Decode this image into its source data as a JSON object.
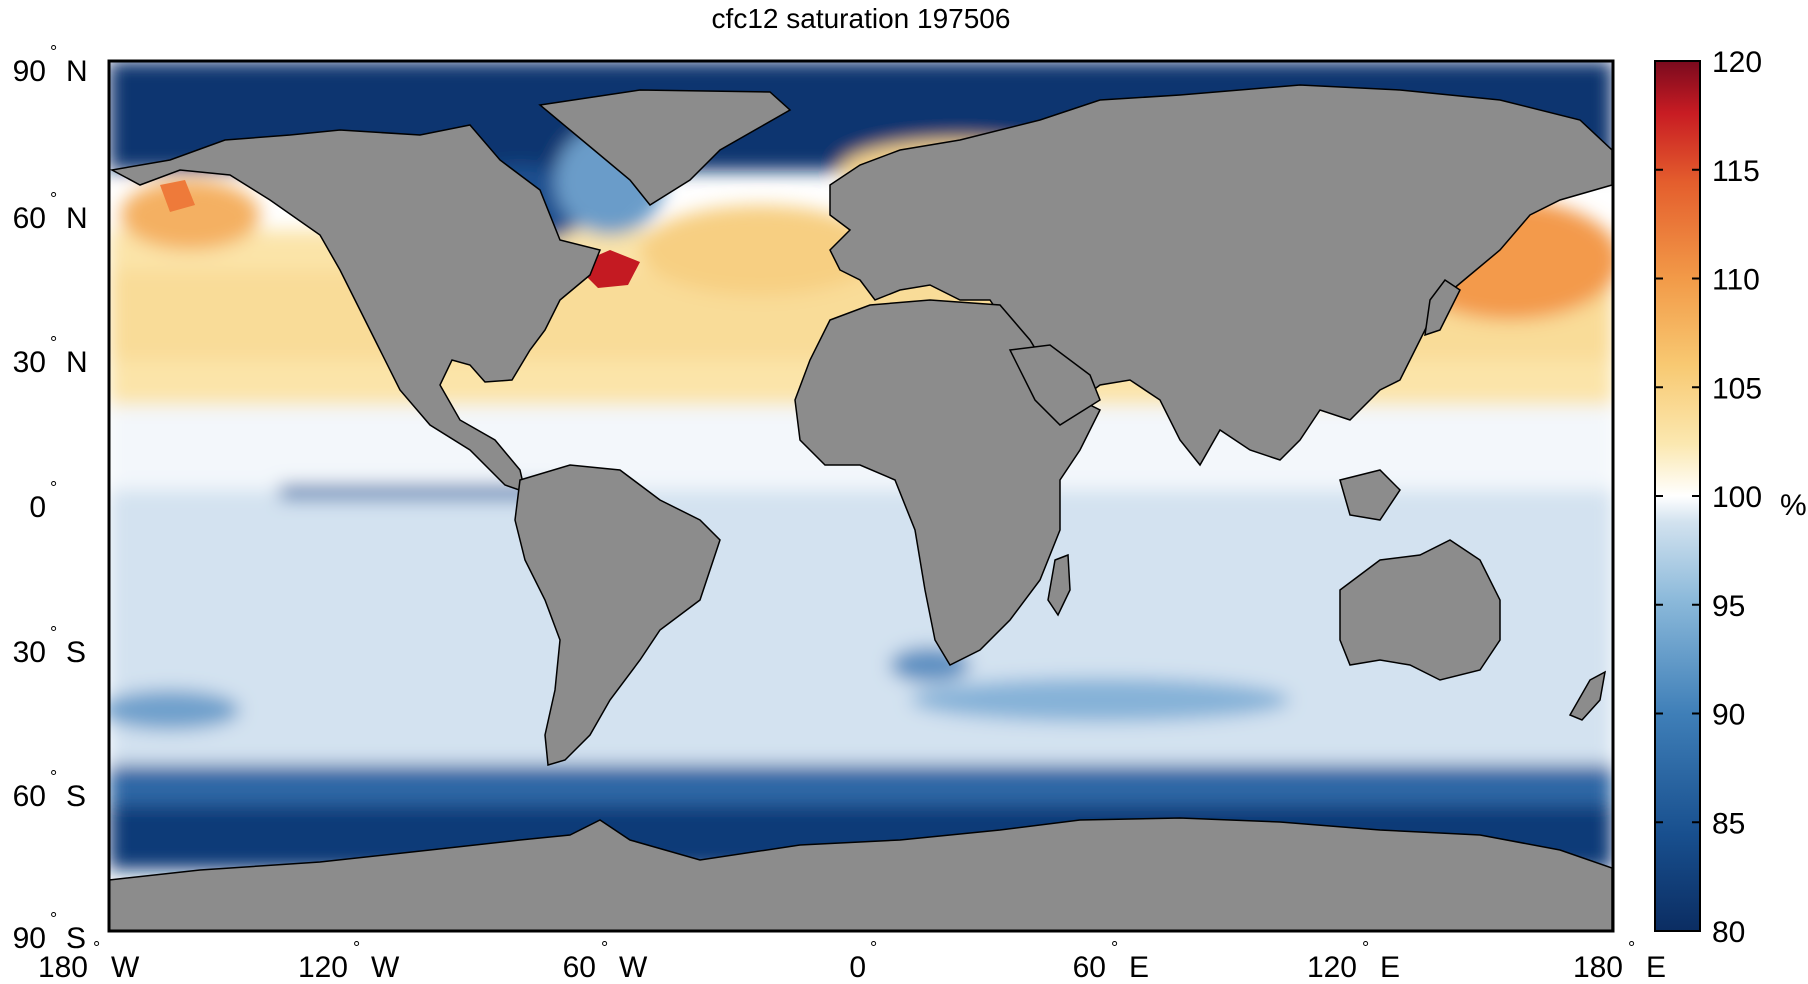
{
  "title": "cfc12 saturation 197506",
  "map": {
    "projection": "equirectangular",
    "lon_range": [
      -180,
      180
    ],
    "lat_range": [
      -90,
      90
    ],
    "ocean_field": "cfc12 saturation",
    "land_color": "#8c8c8c",
    "coast_color": "#000000"
  },
  "lat_ticks": [
    {
      "value": 90,
      "deg": "90",
      "hem": "N"
    },
    {
      "value": 60,
      "deg": "60",
      "hem": "N"
    },
    {
      "value": 30,
      "deg": "30",
      "hem": "N"
    },
    {
      "value": 0,
      "deg": "0",
      "hem": ""
    },
    {
      "value": -30,
      "deg": "30",
      "hem": "S"
    },
    {
      "value": -60,
      "deg": "60",
      "hem": "S"
    },
    {
      "value": -90,
      "deg": "90",
      "hem": "S"
    }
  ],
  "lon_ticks": [
    {
      "value": -180,
      "deg": "180",
      "hem": "W"
    },
    {
      "value": -120,
      "deg": "120",
      "hem": "W"
    },
    {
      "value": -60,
      "deg": "60",
      "hem": "W"
    },
    {
      "value": 0,
      "deg": "0",
      "hem": ""
    },
    {
      "value": 60,
      "deg": "60",
      "hem": "E"
    },
    {
      "value": 120,
      "deg": "120",
      "hem": "E"
    },
    {
      "value": 180,
      "deg": "180",
      "hem": "E"
    }
  ],
  "colorbar": {
    "min": 80,
    "max": 120,
    "unit": "%",
    "ticks": [
      "80",
      "85",
      "90",
      "95",
      "100",
      "105",
      "110",
      "115",
      "120"
    ],
    "colors": [
      "#0b2d62",
      "#184f8e",
      "#3f7fb8",
      "#8bb9da",
      "#d2e2ef",
      "#ffffff",
      "#fbe8b0",
      "#f8c972",
      "#f29a48",
      "#e45e2d",
      "#c81c23",
      "#7a0a1e"
    ]
  },
  "chart_data": {
    "type": "heatmap",
    "title": "cfc12 saturation 197506",
    "colorbar_label": "%",
    "colorbar_range": [
      80,
      120
    ],
    "regions": [
      {
        "region": "Arctic Ocean",
        "value": 82
      },
      {
        "region": "North Pacific subtropics",
        "value": 103
      },
      {
        "region": "Gulf of Alaska",
        "value": 108
      },
      {
        "region": "Northwest Pacific (Sea of Okhotsk / Sea of Japan)",
        "value": 117
      },
      {
        "region": "North Atlantic subtropics",
        "value": 103
      },
      {
        "region": "Gulf of St. Lawrence",
        "value": 116
      },
      {
        "region": "Labrador Sea / Hudson Bay",
        "value": 86
      },
      {
        "region": "Mediterranean Sea",
        "value": 106
      },
      {
        "region": "Norwegian / Barents Sea",
        "value": 103
      },
      {
        "region": "Equatorial oceans",
        "value": 97
      },
      {
        "region": "Eastern equatorial Pacific upwelling",
        "value": 86
      },
      {
        "region": "South Atlantic / South Indian subtropics",
        "value": 95
      },
      {
        "region": "Southern Ocean",
        "value": 83
      }
    ]
  }
}
